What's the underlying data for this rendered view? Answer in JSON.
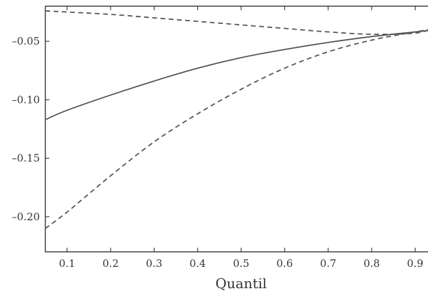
{
  "chart_data": {
    "type": "line",
    "title": "",
    "xlabel": "Quantil",
    "ylabel": "",
    "xlim": [
      0.05,
      0.95
    ],
    "ylim": [
      -0.23,
      -0.02
    ],
    "xticks": [
      0.1,
      0.2,
      0.3,
      0.4,
      0.5,
      0.6,
      0.7,
      0.8,
      0.9
    ],
    "xtick_labels": [
      "0.1",
      "0.2",
      "0.3",
      "0.4",
      "0.5",
      "0.6",
      "0.7",
      "0.8",
      "0.9"
    ],
    "yticks": [
      -0.05,
      -0.1,
      -0.15,
      -0.2
    ],
    "ytick_labels": [
      "–0.05",
      "–0.10",
      "–0.15",
      "–0.20"
    ],
    "grid": false,
    "legend": "none",
    "series": [
      {
        "style": "solid",
        "x": [
          0.05,
          0.1,
          0.2,
          0.3,
          0.4,
          0.5,
          0.6,
          0.7,
          0.8,
          0.9,
          0.95
        ],
        "y": [
          -0.117,
          -0.109,
          -0.096,
          -0.084,
          -0.073,
          -0.064,
          -0.057,
          -0.051,
          -0.046,
          -0.042,
          -0.04
        ]
      },
      {
        "style": "dashed",
        "x": [
          0.05,
          0.1,
          0.2,
          0.3,
          0.4,
          0.5,
          0.6,
          0.7,
          0.8,
          0.9,
          0.95
        ],
        "y": [
          -0.024,
          -0.025,
          -0.027,
          -0.03,
          -0.033,
          -0.036,
          -0.039,
          -0.042,
          -0.044,
          -0.043,
          -0.038
        ]
      },
      {
        "style": "dashed",
        "x": [
          0.05,
          0.1,
          0.2,
          0.3,
          0.4,
          0.5,
          0.6,
          0.7,
          0.8,
          0.9,
          0.95
        ],
        "y": [
          -0.21,
          -0.196,
          -0.165,
          -0.136,
          -0.112,
          -0.091,
          -0.073,
          -0.059,
          -0.049,
          -0.042,
          -0.039
        ]
      }
    ]
  }
}
